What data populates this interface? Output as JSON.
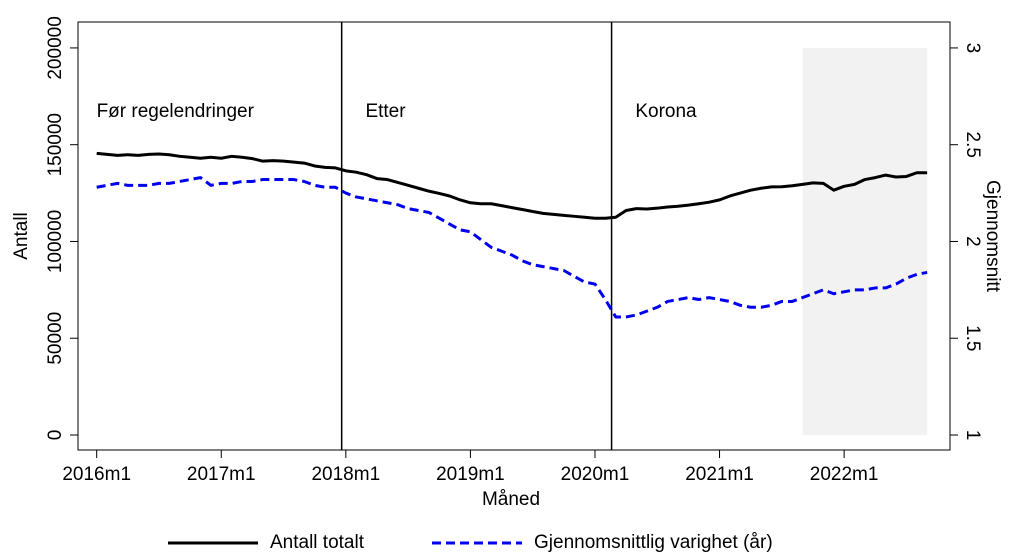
{
  "chart_data": {
    "type": "line",
    "x_label": "Måned",
    "y_label": "Antall",
    "y2_label": "Gjennomsnitt",
    "x": [
      672,
      673,
      674,
      675,
      676,
      677,
      678,
      679,
      680,
      681,
      682,
      683,
      684,
      685,
      686,
      687,
      688,
      689,
      690,
      691,
      692,
      693,
      694,
      695,
      696,
      697,
      698,
      699,
      700,
      701,
      702,
      703,
      704,
      705,
      706,
      707,
      708,
      709,
      710,
      711,
      712,
      713,
      714,
      715,
      716,
      717,
      718,
      719,
      720,
      721,
      722,
      723,
      724,
      725,
      726,
      727,
      728,
      729,
      730,
      731,
      732,
      733,
      734,
      735,
      736,
      737,
      738,
      739,
      740,
      741,
      742,
      743,
      744,
      745,
      746,
      747,
      748,
      749,
      750,
      751,
      752
    ],
    "series": [
      {
        "name": "Antall totalt",
        "color": "#000000",
        "dash": false,
        "values": [
          145500,
          145000,
          144500,
          144800,
          144500,
          145000,
          145200,
          144800,
          144000,
          143500,
          143000,
          143500,
          143000,
          144000,
          143500,
          142800,
          141500,
          141800,
          141500,
          141000,
          140500,
          139000,
          138300,
          138000,
          136500,
          135800,
          134500,
          132500,
          132000,
          130500,
          129000,
          127500,
          126000,
          124800,
          123500,
          121500,
          120000,
          119500,
          119500,
          118500,
          117500,
          116500,
          115500,
          114500,
          114000,
          113500,
          113000,
          112500,
          112000,
          112000,
          112500,
          116000,
          117000,
          116800,
          117200,
          117800,
          118200,
          118800,
          119500,
          120300,
          121500,
          123500,
          125000,
          126500,
          127500,
          128200,
          128300,
          128800,
          129500,
          130300,
          130000,
          126500,
          128500,
          129500,
          132000,
          133000,
          134300,
          133300,
          133600,
          135500,
          135500
        ]
      },
      {
        "name": "Gjennomsnittlig varighet (år)",
        "color": "#0000ee",
        "dash": true,
        "axis": "y2",
        "values": [
          2.28,
          2.29,
          2.3,
          2.29,
          2.29,
          2.29,
          2.3,
          2.3,
          2.31,
          2.32,
          2.33,
          2.29,
          2.3,
          2.3,
          2.31,
          2.31,
          2.32,
          2.32,
          2.32,
          2.32,
          2.31,
          2.29,
          2.28,
          2.28,
          2.25,
          2.23,
          2.22,
          2.21,
          2.2,
          2.19,
          2.17,
          2.16,
          2.15,
          2.12,
          2.09,
          2.06,
          2.05,
          2.01,
          1.97,
          1.95,
          1.93,
          1.9,
          1.88,
          1.87,
          1.86,
          1.85,
          1.82,
          1.79,
          1.78,
          1.7,
          1.61,
          1.61,
          1.62,
          1.64,
          1.66,
          1.69,
          1.7,
          1.71,
          1.7,
          1.71,
          1.7,
          1.69,
          1.67,
          1.66,
          1.66,
          1.67,
          1.69,
          1.69,
          1.71,
          1.73,
          1.75,
          1.73,
          1.74,
          1.75,
          1.75,
          1.76,
          1.76,
          1.78,
          1.81,
          1.83,
          1.84
        ]
      }
    ],
    "xlim": [
      670.2,
      754.2
    ],
    "xticks": [
      {
        "value": 672,
        "label": "2016m1"
      },
      {
        "value": 684,
        "label": "2017m1"
      },
      {
        "value": 696,
        "label": "2018m1"
      },
      {
        "value": 708,
        "label": "2019m1"
      },
      {
        "value": 720,
        "label": "2020m1"
      },
      {
        "value": 732,
        "label": "2021m1"
      },
      {
        "value": 744,
        "label": "2022m1"
      }
    ],
    "ylim": [
      -7750,
      213400
    ],
    "yticks": [
      0,
      50000,
      100000,
      150000,
      200000
    ],
    "y2lim": [
      0.9225,
      3.134
    ],
    "y2ticks": [
      1,
      1.5,
      2,
      2.5,
      3
    ],
    "vlines": [
      695.6,
      721.6
    ],
    "annotations": [
      "Før regelendringer",
      "Etter",
      "Korona"
    ],
    "shade": {
      "x": [
        740,
        752
      ],
      "y2": [
        1,
        3
      ],
      "color": "#f2f2f2"
    },
    "legend": "bottom"
  }
}
